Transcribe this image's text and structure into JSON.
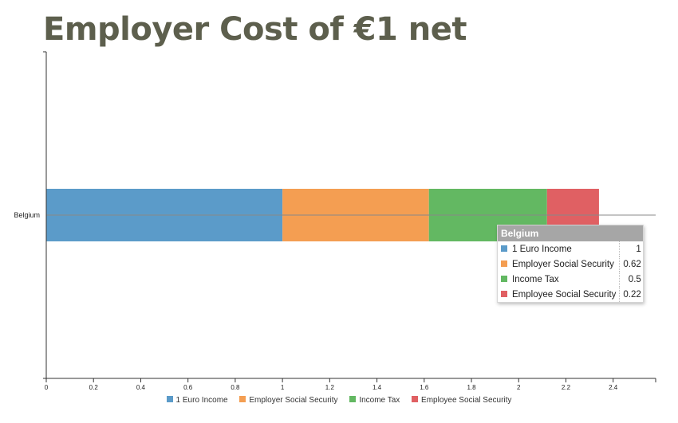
{
  "title": "Employer Cost of €1 net",
  "colors": {
    "title": "#5d5f4d",
    "tooltip_header_bg": "#a6a6a6"
  },
  "chart_data": {
    "type": "bar",
    "orientation": "horizontal",
    "stacked": true,
    "categories": [
      "Belgium"
    ],
    "series": [
      {
        "name": "1 Euro Income",
        "values": [
          1
        ],
        "color": "#5b9bc9"
      },
      {
        "name": "Employer Social Security",
        "values": [
          0.62
        ],
        "color": "#f49e52"
      },
      {
        "name": "Income Tax",
        "values": [
          0.5
        ],
        "color": "#63b862"
      },
      {
        "name": "Employee Social Security",
        "values": [
          0.22
        ],
        "color": "#e06063"
      }
    ],
    "xlim": [
      0,
      2.58
    ],
    "xticks": [
      0,
      0.2,
      0.4,
      0.6,
      0.8,
      1,
      1.2,
      1.4,
      1.6,
      1.8,
      2,
      2.2,
      2.4
    ],
    "xtick_labels": [
      "0",
      "0.2",
      "0.4",
      "0.6",
      "0.8",
      "1",
      "1.2",
      "1.4",
      "1.6",
      "1.8",
      "2",
      "2.2",
      "2.4"
    ],
    "legend_position": "bottom-center",
    "grid": false
  },
  "tooltip": {
    "title": "Belgium",
    "rows": [
      {
        "label": "1 Euro Income",
        "value": "1",
        "color": "#5b9bc9"
      },
      {
        "label": "Employer Social Security",
        "value": "0.62",
        "color": "#f49e52"
      },
      {
        "label": "Income Tax",
        "value": "0.5",
        "color": "#63b862"
      },
      {
        "label": "Employee Social Security",
        "value": "0.22",
        "color": "#e06063"
      }
    ]
  }
}
